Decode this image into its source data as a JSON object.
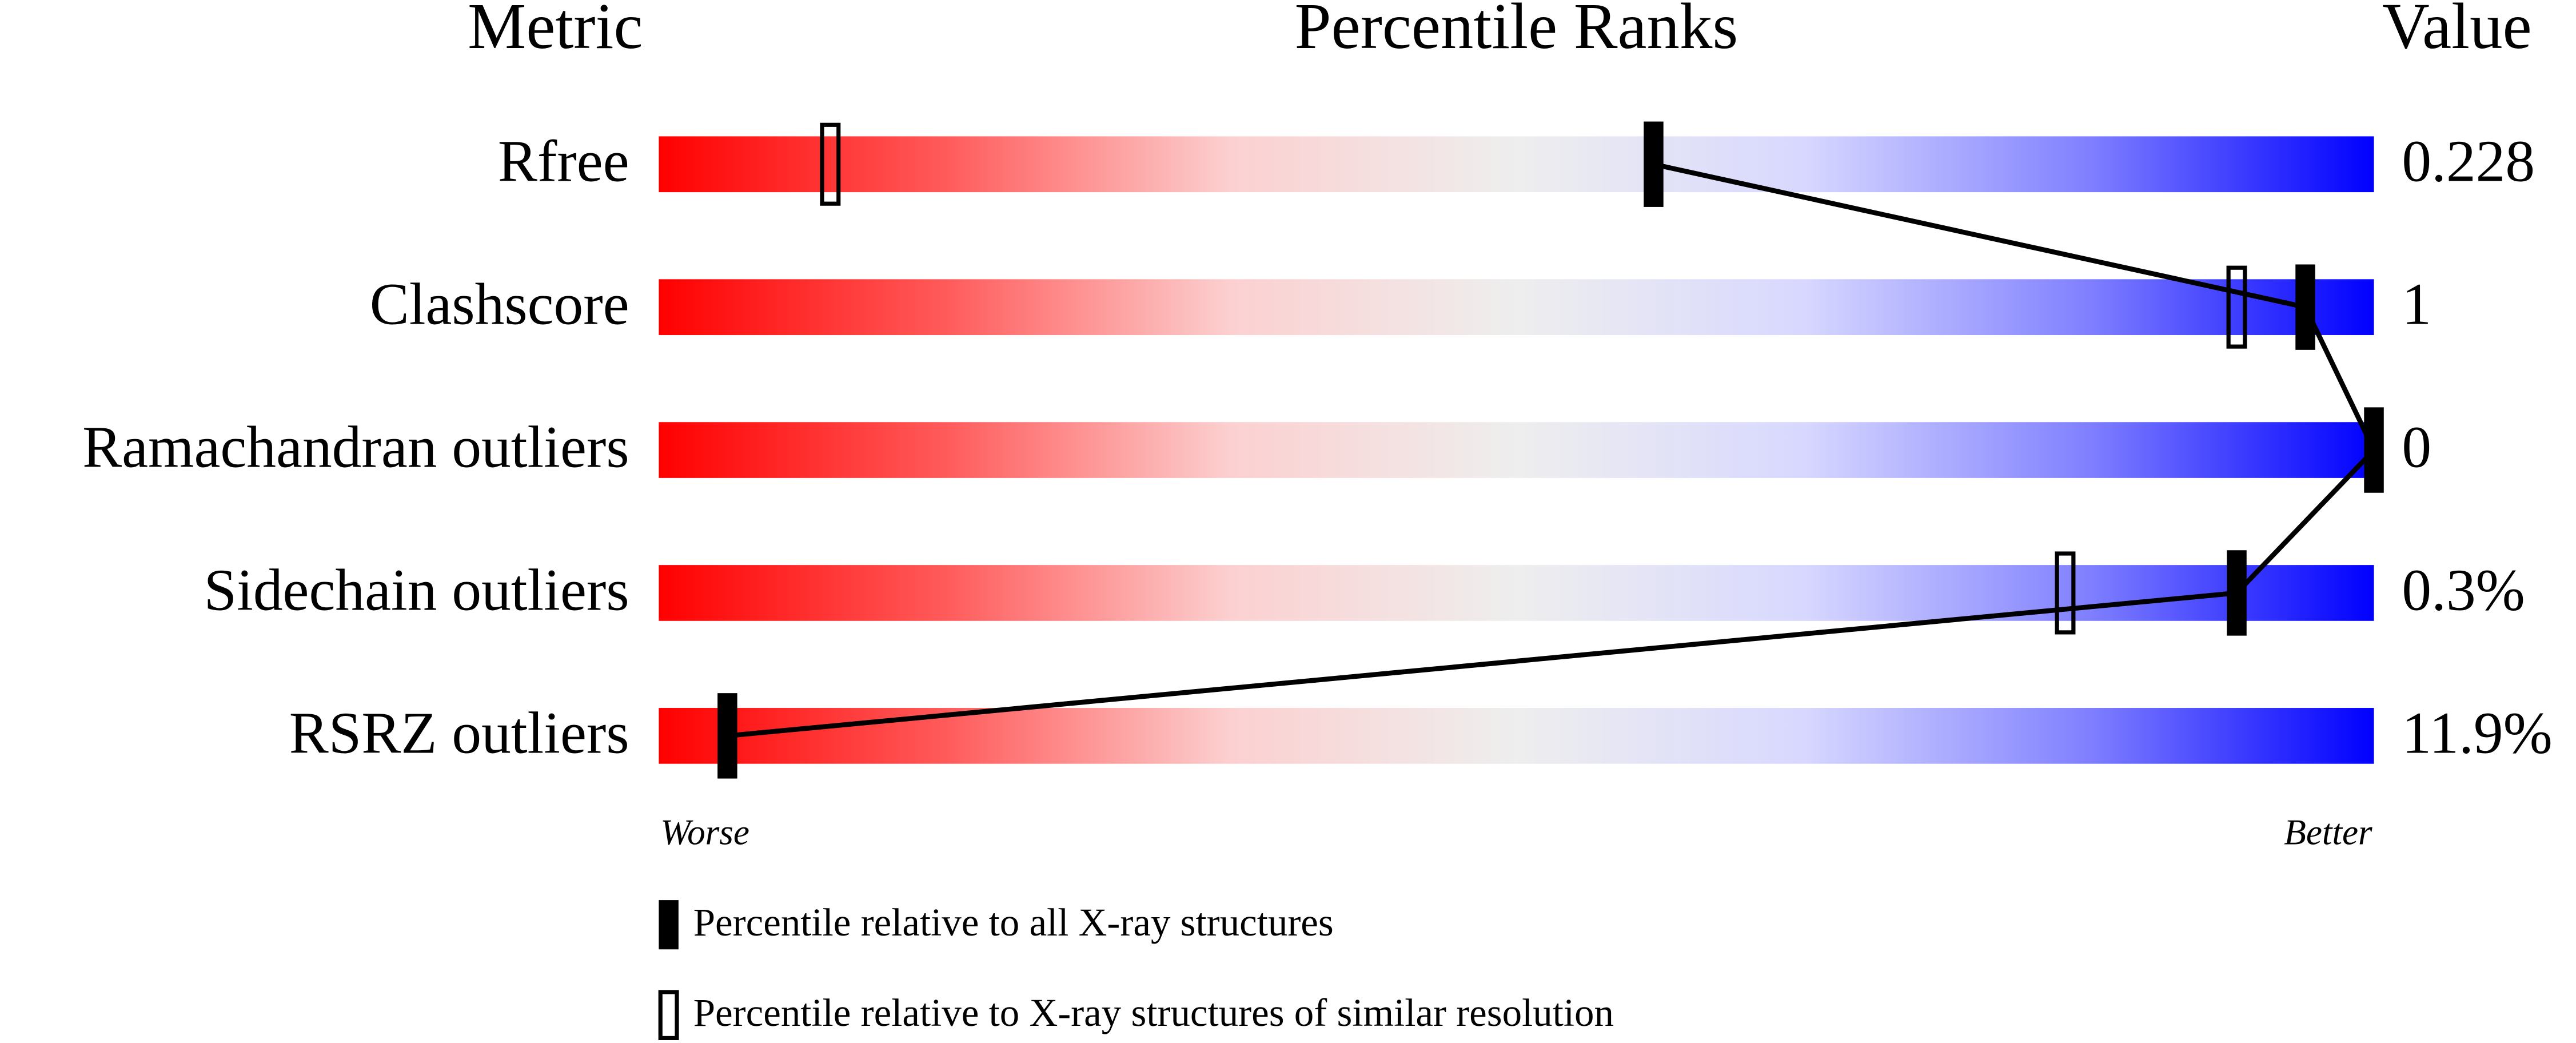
{
  "chart_data": {
    "type": "percentile-slider",
    "headers": {
      "metric": "Metric",
      "ranks": "Percentile Ranks",
      "value": "Value"
    },
    "categories": [
      "Rfree",
      "Clashscore",
      "Ramachandran outliers",
      "Sidechain outliers",
      "RSRZ outliers"
    ],
    "series": [
      {
        "name": "Percentile relative to all X-ray structures",
        "color": "#000000",
        "style": "filled",
        "values": [
          58,
          96,
          100,
          92,
          4
        ]
      },
      {
        "name": "Percentile relative to X-ray structures of similar resolution",
        "color": "#000000",
        "style": "outline",
        "values": [
          10,
          92,
          null,
          82,
          null
        ]
      }
    ],
    "metric_values": [
      0.228,
      1,
      0,
      0.3,
      11.9
    ],
    "metric_value_labels": [
      "0.228",
      "1",
      "0",
      "0.3%",
      "11.9%"
    ],
    "xlim": [
      0,
      100
    ],
    "axis_labels": {
      "low": "Worse",
      "high": "Better"
    },
    "gradient": [
      "#ff0000",
      "#ff5a5a",
      "#fcd0d0",
      "#eeeeee",
      "#d8d8ff",
      "#8080ff",
      "#0000ff"
    ]
  }
}
